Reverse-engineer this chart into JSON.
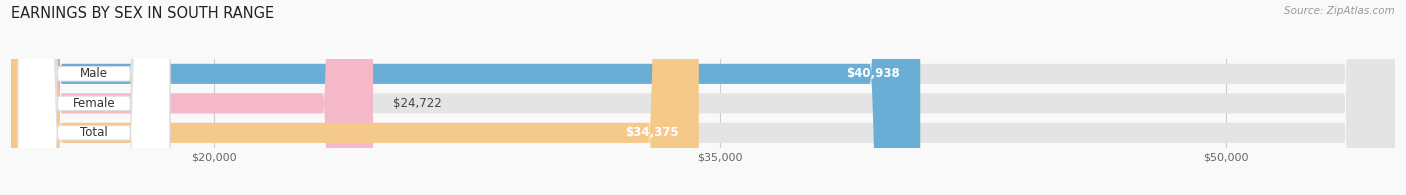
{
  "title": "EARNINGS BY SEX IN SOUTH RANGE",
  "source": "Source: ZipAtlas.com",
  "categories": [
    "Male",
    "Female",
    "Total"
  ],
  "values": [
    40938,
    24722,
    34375
  ],
  "bar_colors": [
    "#6aaed6",
    "#f5b8c8",
    "#f5c98a"
  ],
  "value_labels": [
    "$40,938",
    "$24,722",
    "$34,375"
  ],
  "value_inside": [
    true,
    false,
    true
  ],
  "xmin": 14000,
  "xmax": 55000,
  "xticks": [
    20000,
    35000,
    50000
  ],
  "xtick_labels": [
    "$20,000",
    "$35,000",
    "$50,000"
  ],
  "title_fontsize": 10.5,
  "bar_label_fontsize": 8.5,
  "value_fontsize": 8.5,
  "source_fontsize": 7.5,
  "bg_color": "#f9f9f9",
  "bar_bg_color": "#e4e4e4",
  "pill_color": "#ffffff",
  "pill_text_color": "#333333",
  "grid_color": "#cccccc",
  "tick_color": "#666666"
}
